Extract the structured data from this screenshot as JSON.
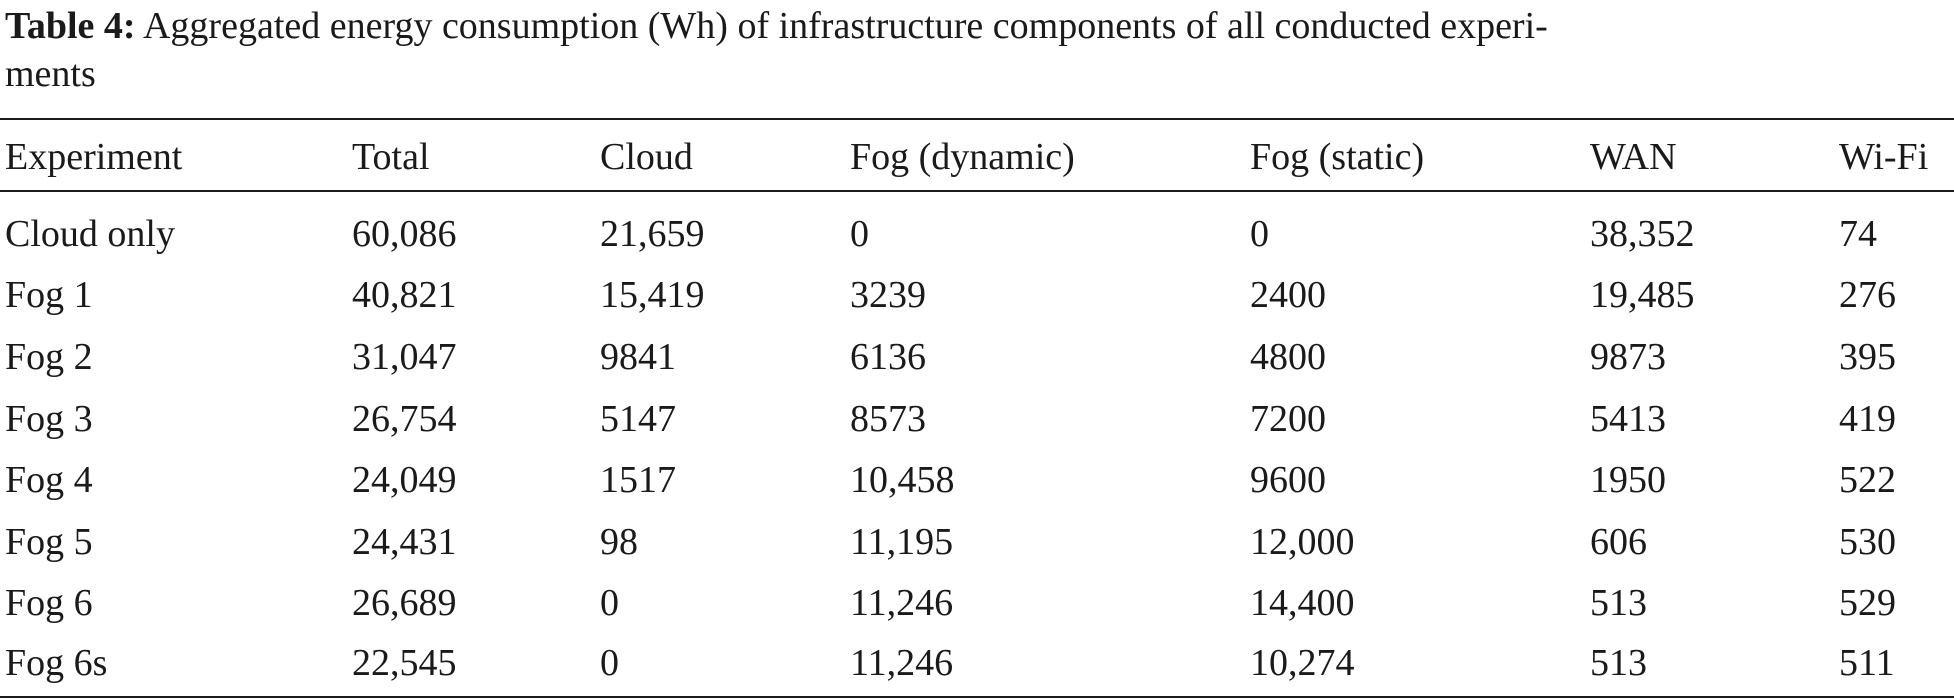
{
  "caption": {
    "label": "Table 4:",
    "text": "Aggregated energy consumption (Wh) of infrastructure components of all conducted experi-",
    "text_cont": "ments"
  },
  "table": {
    "headers": [
      "Experiment",
      "Total",
      "Cloud",
      "Fog (dynamic)",
      "Fog (static)",
      "WAN",
      "Wi-Fi"
    ],
    "rows": [
      [
        "Cloud only",
        "60,086",
        "21,659",
        "0",
        "0",
        "38,352",
        "74"
      ],
      [
        "Fog 1",
        "40,821",
        "15,419",
        "3239",
        "2400",
        "19,485",
        "276"
      ],
      [
        "Fog 2",
        "31,047",
        "9841",
        "6136",
        "4800",
        "9873",
        "395"
      ],
      [
        "Fog 3",
        "26,754",
        "5147",
        "8573",
        "7200",
        "5413",
        "419"
      ],
      [
        "Fog 4",
        "24,049",
        "1517",
        "10,458",
        "9600",
        "1950",
        "522"
      ],
      [
        "Fog 5",
        "24,431",
        "98",
        "11,195",
        "12,000",
        "606",
        "530"
      ],
      [
        "Fog 6",
        "26,689",
        "0",
        "11,246",
        "14,400",
        "513",
        "529"
      ],
      [
        "Fog 6s",
        "22,545",
        "0",
        "11,246",
        "10,274",
        "513",
        "511"
      ]
    ]
  }
}
